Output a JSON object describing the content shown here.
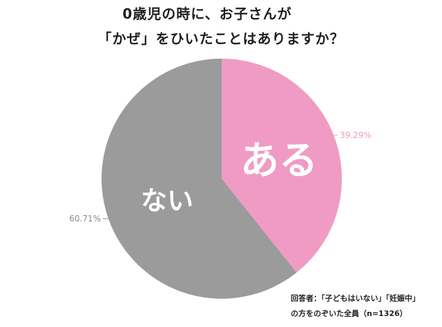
{
  "chart_data": {
    "type": "pie",
    "title_lines": [
      "0歳児の時に、お子さんが",
      "「かぜ」をひいたことはありますか？"
    ],
    "slices": [
      {
        "label": "ある",
        "percent_label": "39.29%",
        "value": 39.29,
        "color": "#f09bc4",
        "label_color": "#ffffff",
        "percent_color": "#f09bc4"
      },
      {
        "label": "ない",
        "percent_label": "60.71%",
        "value": 60.71,
        "color": "#9b9b9b",
        "label_color": "#ffffff",
        "percent_color": "#8a8a8a"
      }
    ],
    "start": "12 o'clock",
    "direction": "clockwise"
  },
  "footnote_lines": [
    "回答者：「子どもはいない」「妊娠中」",
    "の方をのぞいた全員（n=1326）"
  ]
}
